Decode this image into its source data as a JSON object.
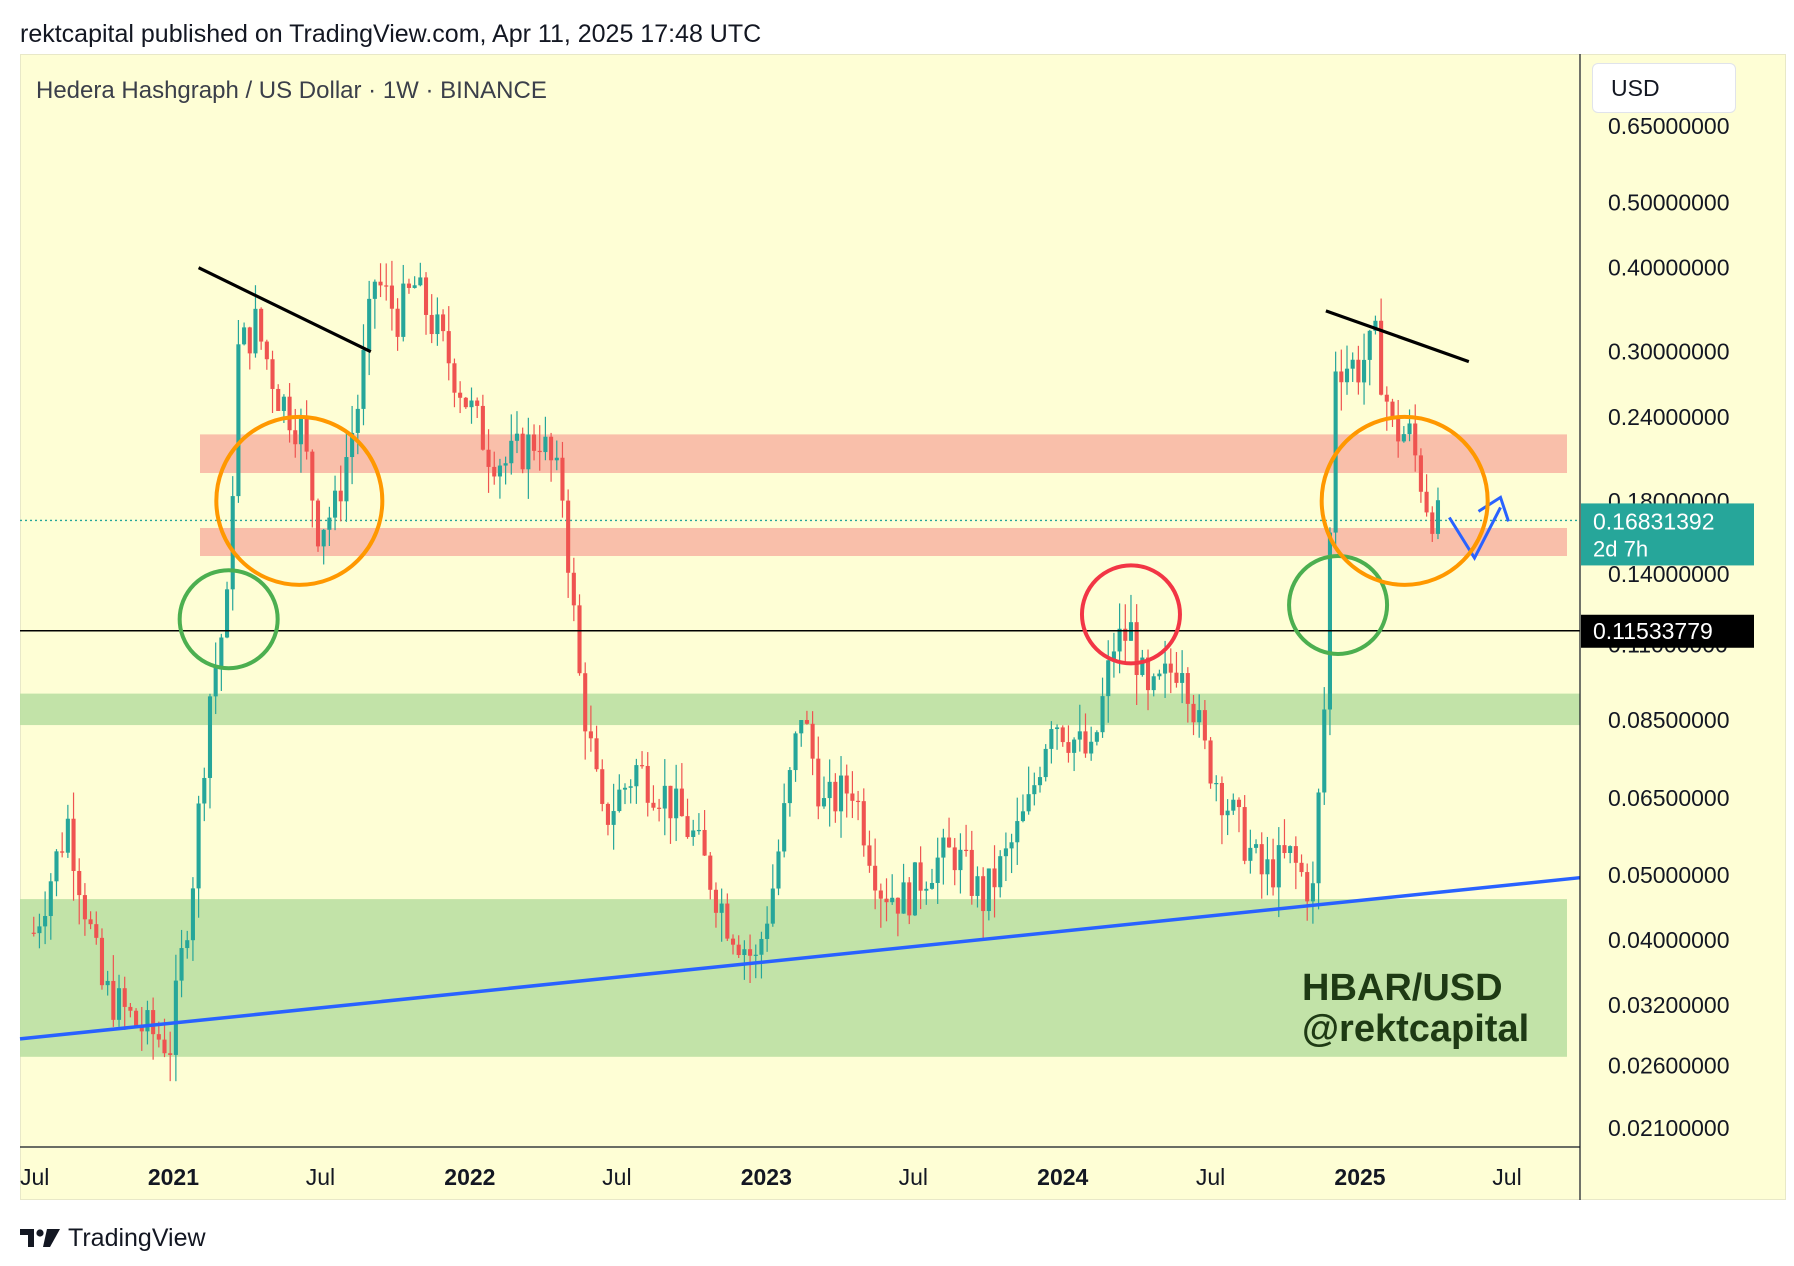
{
  "caption": "rektcapital published on TradingView.com, Apr 11, 2025 17:48 UTC",
  "symbol_title": "Hedera Hashgraph / US Dollar · 1W · BINANCE",
  "currency": "USD",
  "watermark": {
    "line1": "HBAR/USD",
    "line2": "@rektcapital"
  },
  "footer_brand": "TradingView",
  "icons": {
    "footer": "tradingview-logo-icon"
  },
  "colors": {
    "background": "#fefed5",
    "up": "#26a69a",
    "down": "#ef5350",
    "resistance_zone": "#f8b4a2",
    "support_zone": "#b7dea0",
    "trendline": "#2962ff",
    "green_circle": "#4caf50",
    "orange_circle": "#ff9800",
    "red_circle": "#f23645",
    "current_price_tag": "#26a69a",
    "level_tag": "#000000"
  },
  "price_tags": {
    "current": {
      "price": "0.16831392",
      "countdown": "2d 7h"
    },
    "level": "0.11533779"
  },
  "chart_data": {
    "type": "candlestick",
    "title": "Hedera Hashgraph / US Dollar · 1W · BINANCE",
    "scale": "log",
    "y_ticks": [
      "0.65000000",
      "0.50000000",
      "0.40000000",
      "0.30000000",
      "0.24000000",
      "0.18000000",
      "0.14000000",
      "0.11000000",
      "0.08500000",
      "0.06500000",
      "0.05000000",
      "0.04000000",
      "0.03200000",
      "0.02600000",
      "0.02100000"
    ],
    "x_ticks": [
      {
        "label": "Jul",
        "date": "2020-07",
        "bold": false
      },
      {
        "label": "2021",
        "date": "2021-01",
        "bold": true
      },
      {
        "label": "Jul",
        "date": "2021-07",
        "bold": false
      },
      {
        "label": "2022",
        "date": "2022-01",
        "bold": true
      },
      {
        "label": "Jul",
        "date": "2022-07",
        "bold": false
      },
      {
        "label": "2023",
        "date": "2023-01",
        "bold": true
      },
      {
        "label": "Jul",
        "date": "2023-07",
        "bold": false
      },
      {
        "label": "2024",
        "date": "2024-01",
        "bold": true
      },
      {
        "label": "Jul",
        "date": "2024-07",
        "bold": false
      },
      {
        "label": "2025",
        "date": "2025-01",
        "bold": true
      },
      {
        "label": "Jul",
        "date": "2025-07",
        "bold": false
      }
    ],
    "anchors": [
      [
        "2020-07-13",
        0.041
      ],
      [
        "2020-08-24",
        0.06
      ],
      [
        "2020-10-05",
        0.034
      ],
      [
        "2020-11-16",
        0.03
      ],
      [
        "2020-12-28",
        0.028
      ],
      [
        "2021-01-25",
        0.05
      ],
      [
        "2021-02-15",
        0.093
      ],
      [
        "2021-03-08",
        0.125
      ],
      [
        "2021-03-22",
        0.3
      ],
      [
        "2021-04-12",
        0.33
      ],
      [
        "2021-05-10",
        0.26
      ],
      [
        "2021-06-07",
        0.23
      ],
      [
        "2021-06-28",
        0.165
      ],
      [
        "2021-07-19",
        0.175
      ],
      [
        "2021-08-16",
        0.25
      ],
      [
        "2021-09-06",
        0.385
      ],
      [
        "2021-10-04",
        0.34
      ],
      [
        "2021-10-25",
        0.375
      ],
      [
        "2021-11-22",
        0.32
      ],
      [
        "2021-12-27",
        0.255
      ],
      [
        "2022-01-24",
        0.215
      ],
      [
        "2022-02-14",
        0.205
      ],
      [
        "2022-03-28",
        0.225
      ],
      [
        "2022-04-25",
        0.185
      ],
      [
        "2022-05-16",
        0.098
      ],
      [
        "2022-06-13",
        0.06
      ],
      [
        "2022-07-25",
        0.072
      ],
      [
        "2022-08-29",
        0.066
      ],
      [
        "2022-10-03",
        0.057
      ],
      [
        "2022-11-14",
        0.043
      ],
      [
        "2022-12-19",
        0.037
      ],
      [
        "2023-01-09",
        0.048
      ],
      [
        "2023-02-13",
        0.088
      ],
      [
        "2023-03-13",
        0.063
      ],
      [
        "2023-04-17",
        0.068
      ],
      [
        "2023-05-22",
        0.048
      ],
      [
        "2023-06-19",
        0.046
      ],
      [
        "2023-07-24",
        0.052
      ],
      [
        "2023-08-21",
        0.054
      ],
      [
        "2023-09-25",
        0.046
      ],
      [
        "2023-10-23",
        0.053
      ],
      [
        "2023-11-20",
        0.063
      ],
      [
        "2023-12-18",
        0.087
      ],
      [
        "2024-02-05",
        0.074
      ],
      [
        "2024-03-04",
        0.11
      ],
      [
        "2024-03-25",
        0.115
      ],
      [
        "2024-04-15",
        0.09
      ],
      [
        "2024-05-27",
        0.106
      ],
      [
        "2024-06-24",
        0.076
      ],
      [
        "2024-07-29",
        0.061
      ],
      [
        "2024-09-02",
        0.05
      ],
      [
        "2024-10-07",
        0.053
      ],
      [
        "2024-11-04",
        0.047
      ],
      [
        "2024-11-18",
        0.088
      ],
      [
        "2024-12-02",
        0.29
      ],
      [
        "2024-12-30",
        0.285
      ],
      [
        "2025-01-20",
        0.31
      ],
      [
        "2025-02-10",
        0.23
      ],
      [
        "2025-03-03",
        0.225
      ],
      [
        "2025-03-24",
        0.18
      ],
      [
        "2025-04-07",
        0.168
      ]
    ],
    "annotations": {
      "resistance_zones": [
        [
          0.198,
          0.226
        ],
        [
          0.149,
          0.164
        ]
      ],
      "support_zones": [
        [
          0.0835,
          0.093
        ],
        [
          0.0268,
          0.046
        ]
      ],
      "horizontal_level": 0.11533779,
      "blue_trendline": [
        [
          "2020-04-01",
          0.0285
        ],
        [
          "2025-12-01",
          0.0495
        ]
      ],
      "black_trendlines": [
        [
          [
            "2021-02-01",
            0.4
          ],
          [
            "2021-09-01",
            0.3
          ]
        ],
        [
          [
            "2024-11-20",
            0.345
          ],
          [
            "2025-05-15",
            0.29
          ]
        ]
      ],
      "green_circles": [
        [
          "2021-03-10",
          0.12
        ],
        [
          "2024-12-05",
          0.126
        ]
      ],
      "orange_circles": [
        [
          "2021-06-05",
          0.18
        ],
        [
          "2025-02-25",
          0.18
        ]
      ],
      "red_circles": [
        [
          "2024-03-25",
          0.122
        ]
      ],
      "projection_path": [
        [
          "2025-04-21",
          0.17
        ],
        [
          "2025-05-22",
          0.148
        ],
        [
          "2025-06-23",
          0.176
        ]
      ]
    }
  }
}
